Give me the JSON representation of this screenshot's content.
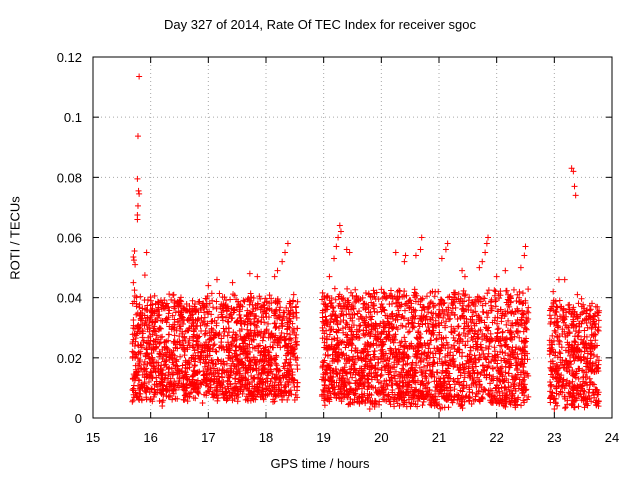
{
  "chart_data": {
    "type": "scatter",
    "title": "Day 327 of 2014, Rate Of TEC Index for receiver sgoc",
    "xlabel": "GPS time / hours",
    "ylabel": "ROTI / TECUs",
    "xlim": [
      15,
      24
    ],
    "ylim": [
      0,
      0.12
    ],
    "xticks": [
      15,
      16,
      17,
      18,
      19,
      20,
      21,
      22,
      23,
      24
    ],
    "yticks": [
      0,
      0.02,
      0.04,
      0.06,
      0.08,
      0.1,
      0.12
    ],
    "ytick_labels": [
      "0",
      "0.02",
      "0.04",
      "0.06",
      "0.08",
      "0.1",
      "0.12"
    ],
    "grid": true,
    "marker": "+",
    "color": "#ff0000",
    "series": [
      {
        "name": "ROTI",
        "segments": [
          {
            "x_start": 15.68,
            "x_end": 18.55,
            "base_min": 0.007,
            "base_max": 0.04
          },
          {
            "x_start": 18.97,
            "x_end": 22.55,
            "base_min": 0.005,
            "base_max": 0.042
          },
          {
            "x_start": 22.92,
            "x_end": 23.78,
            "base_min": 0.005,
            "base_max": 0.038
          }
        ],
        "points": [
          [
            15.8,
            0.1135
          ],
          [
            15.78,
            0.0937
          ],
          [
            15.77,
            0.0795
          ],
          [
            15.79,
            0.0755
          ],
          [
            15.8,
            0.0745
          ],
          [
            15.78,
            0.0705
          ],
          [
            15.77,
            0.0675
          ],
          [
            15.77,
            0.066
          ],
          [
            15.72,
            0.0555
          ],
          [
            15.7,
            0.0535
          ],
          [
            15.71,
            0.0525
          ],
          [
            15.73,
            0.051
          ],
          [
            15.93,
            0.055
          ],
          [
            15.9,
            0.0475
          ],
          [
            15.7,
            0.045
          ],
          [
            15.72,
            0.0425
          ],
          [
            18.38,
            0.058
          ],
          [
            18.33,
            0.055
          ],
          [
            18.28,
            0.052
          ],
          [
            18.2,
            0.049
          ],
          [
            18.15,
            0.047
          ],
          [
            17.85,
            0.047
          ],
          [
            17.72,
            0.048
          ],
          [
            17.42,
            0.045
          ],
          [
            17.15,
            0.046
          ],
          [
            17.0,
            0.044
          ],
          [
            19.28,
            0.064
          ],
          [
            19.3,
            0.062
          ],
          [
            19.25,
            0.06
          ],
          [
            19.22,
            0.057
          ],
          [
            19.18,
            0.053
          ],
          [
            19.4,
            0.056
          ],
          [
            19.45,
            0.055
          ],
          [
            19.1,
            0.047
          ],
          [
            20.25,
            0.055
          ],
          [
            20.4,
            0.052
          ],
          [
            20.42,
            0.054
          ],
          [
            20.7,
            0.06
          ],
          [
            20.68,
            0.056
          ],
          [
            20.6,
            0.054
          ],
          [
            21.15,
            0.058
          ],
          [
            21.12,
            0.056
          ],
          [
            21.05,
            0.053
          ],
          [
            21.4,
            0.049
          ],
          [
            21.45,
            0.047
          ],
          [
            21.85,
            0.06
          ],
          [
            21.83,
            0.058
          ],
          [
            21.8,
            0.055
          ],
          [
            21.75,
            0.052
          ],
          [
            21.7,
            0.05
          ],
          [
            22.0,
            0.047
          ],
          [
            22.15,
            0.049
          ],
          [
            22.5,
            0.057
          ],
          [
            22.48,
            0.054
          ],
          [
            22.42,
            0.05
          ],
          [
            23.3,
            0.083
          ],
          [
            23.33,
            0.082
          ],
          [
            23.35,
            0.077
          ],
          [
            23.37,
            0.074
          ],
          [
            23.18,
            0.046
          ],
          [
            23.08,
            0.046
          ],
          [
            22.98,
            0.042
          ],
          [
            23.4,
            0.041
          ],
          [
            23.72,
            0.037
          ],
          [
            16.2,
            0.004
          ],
          [
            16.9,
            0.005
          ],
          [
            19.8,
            0.003
          ],
          [
            22.0,
            0.005
          ],
          [
            23.0,
            0.003
          ],
          [
            18.5,
            0.006
          ]
        ]
      }
    ]
  }
}
